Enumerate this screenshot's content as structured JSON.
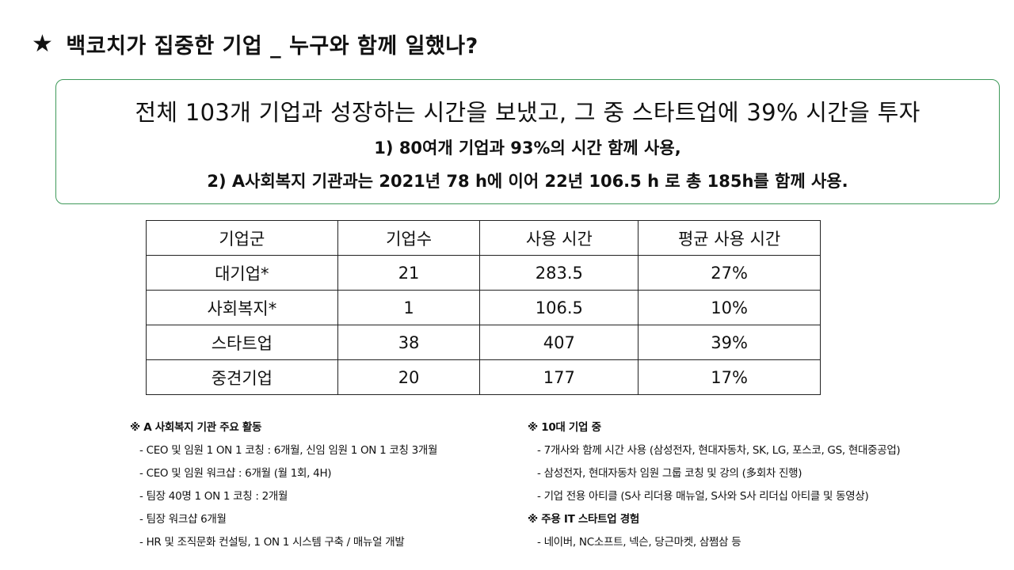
{
  "title": {
    "star": "★",
    "text": "백코치가 집중한 기업 _ 누구와 함께 일했나?"
  },
  "summary": {
    "headline": "전체 103개 기업과 성장하는 시간을 보냈고, 그 중 스타트업에 39% 시간을 투자",
    "point1": "1) 80여개 기업과  93%의 시간 함께 사용,",
    "point2": "2) A사회복지 기관과는 2021년 78 h에 이어 22년 106.5 h 로 총 185h를 함께 사용."
  },
  "table": {
    "headers": [
      "기업군",
      "기업수",
      "사용 시간",
      "평균 사용 시간"
    ],
    "rows": [
      [
        "대기업*",
        "21",
        "283.5",
        "27%"
      ],
      [
        "사회복지*",
        "1",
        "106.5",
        "10%"
      ],
      [
        "스타트업",
        "38",
        "407",
        "39%"
      ],
      [
        "중견기업",
        "20",
        "177",
        "17%"
      ]
    ]
  },
  "notes_left": {
    "heading": "※ A 사회복지 기관 주요 활동",
    "items": [
      "- CEO 및 임원 1 ON 1 코칭 : 6개월, 신임 임원 1 ON 1 코칭 3개월",
      "- CEO 및 임원 워크샵 : 6개월 (월 1회, 4H)",
      "- 팀장 40명 1 ON 1 코칭 : 2개월",
      "- 팀장 워크샵 6개월",
      "- HR 및 조직문화 컨설팅, 1 ON 1 시스템 구축 / 매뉴얼 개발"
    ]
  },
  "notes_right": {
    "heading1": "※ 10대 기업 중",
    "items1": [
      "- 7개사와 함께 시간 사용 (삼성전자, 현대자동차, SK, LG, 포스코, GS, 현대중공업)",
      "- 삼성전자, 현대자동차 임원 그룹 코칭 및 강의 (多회차 진행)",
      "- 기업 전용 아티클 (S사 리더용 매뉴얼, S사와 S사 리더십 아티클 및 동영상)"
    ],
    "heading2": "※ 주용 IT 스타트업 경험",
    "items2": [
      "- 네이버, NC소프트, 넥슨, 당근마켓, 삼쩜삼 등"
    ]
  }
}
